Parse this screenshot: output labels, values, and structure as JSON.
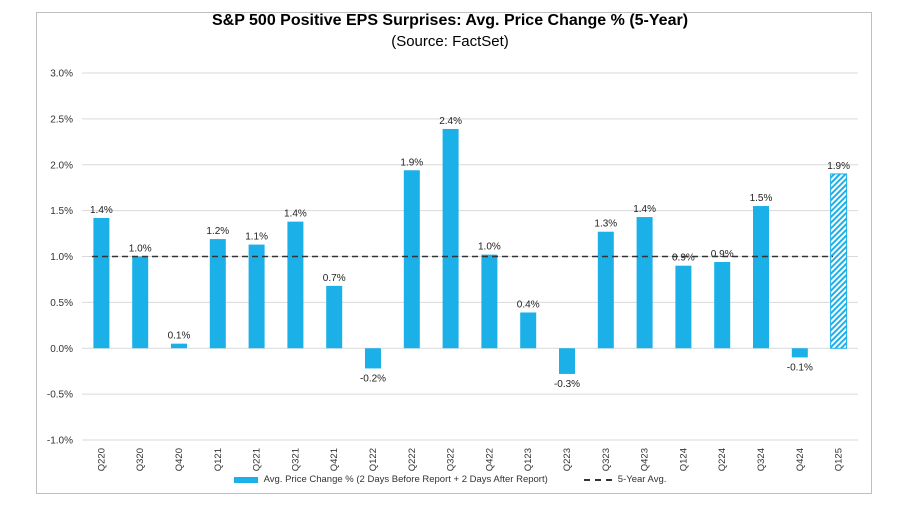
{
  "chart_data": {
    "type": "bar",
    "title": "S&P 500 Positive EPS Surprises: Avg. Price Change % (5-Year)",
    "subtitle": "(Source: FactSet)",
    "categories": [
      "Q220",
      "Q320",
      "Q420",
      "Q121",
      "Q221",
      "Q321",
      "Q421",
      "Q122",
      "Q222",
      "Q322",
      "Q422",
      "Q123",
      "Q223",
      "Q323",
      "Q423",
      "Q124",
      "Q224",
      "Q324",
      "Q424",
      "Q125"
    ],
    "values": [
      1.42,
      1.0,
      0.05,
      1.19,
      1.13,
      1.38,
      0.68,
      -0.22,
      1.94,
      2.39,
      1.02,
      0.39,
      -0.28,
      1.27,
      1.43,
      0.9,
      0.94,
      1.55,
      -0.1,
      1.9
    ],
    "data_labels": [
      "1.4%",
      "1.0%",
      "0.1%",
      "1.2%",
      "1.1%",
      "1.4%",
      "0.7%",
      "-0.2%",
      "1.9%",
      "2.4%",
      "1.0%",
      "0.4%",
      "-0.3%",
      "1.3%",
      "1.4%",
      "0.9%",
      "0.9%",
      "1.5%",
      "-0.1%",
      "1.9%"
    ],
    "hatched_categories": [
      "Q125"
    ],
    "avg_line": 1.0,
    "ylim": [
      -1.0,
      3.0
    ],
    "yticks": [
      -1.0,
      -0.5,
      0.0,
      0.5,
      1.0,
      1.5,
      2.0,
      2.5,
      3.0
    ],
    "ytick_labels": [
      "-1.0%",
      "-0.5%",
      "0.0%",
      "0.5%",
      "1.0%",
      "1.5%",
      "2.0%",
      "2.5%",
      "3.0%"
    ],
    "xlabel": "",
    "ylabel": "",
    "grid": true,
    "legend": {
      "position": "bottom",
      "bar_label": "Avg. Price Change % (2 Days Before Report + 2 Days After Report)",
      "line_label": "5-Year Avg."
    },
    "colors": {
      "bar": "#1cb0e8",
      "avg_line": "#333333",
      "grid": "#d9d9d9"
    }
  }
}
